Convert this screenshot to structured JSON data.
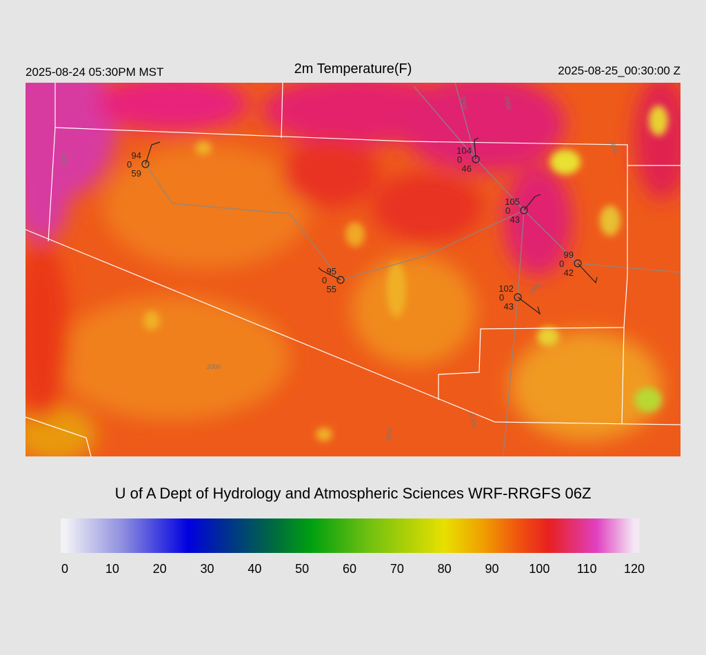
{
  "header": {
    "left": "2025-08-24 05:30PM MST",
    "title": "2m Temperature(F)",
    "right": "2025-08-25_00:30:00 Z"
  },
  "footer": "U of A Dept of Hydrology and Atmospheric Sciences WRF-RRGFS 06Z",
  "colorbar": {
    "lim": [
      0,
      120
    ],
    "ticks": [
      0,
      10,
      20,
      30,
      40,
      50,
      60,
      70,
      80,
      90,
      100,
      110,
      120
    ],
    "stops": [
      {
        "value": 0,
        "color": "#f2f2f6"
      },
      {
        "value": 12,
        "color": "#9090e0"
      },
      {
        "value": 26,
        "color": "#0000e0"
      },
      {
        "value": 34,
        "color": "#003090"
      },
      {
        "value": 44,
        "color": "#006a40"
      },
      {
        "value": 52,
        "color": "#00a010"
      },
      {
        "value": 64,
        "color": "#70c010"
      },
      {
        "value": 80,
        "color": "#e8e000"
      },
      {
        "value": 88,
        "color": "#f0a000"
      },
      {
        "value": 96,
        "color": "#f05010"
      },
      {
        "value": 102,
        "color": "#e82020"
      },
      {
        "value": 112,
        "color": "#e040c0"
      },
      {
        "value": 120,
        "color": "#f4e8f4"
      }
    ]
  },
  "stations": [
    {
      "temp": 94,
      "wind": 0,
      "dewpoint": 59
    },
    {
      "temp": 104,
      "wind": 0,
      "dewpoint": 46
    },
    {
      "temp": 105,
      "wind": 0,
      "dewpoint": 43
    },
    {
      "temp": 95,
      "wind": 0,
      "dewpoint": 55
    },
    {
      "temp": 99,
      "wind": 0,
      "dewpoint": 42
    },
    {
      "temp": 102,
      "wind": 0,
      "dewpoint": 43
    }
  ],
  "contour_labels": [
    "2000",
    "2000",
    "1000",
    "2000",
    "2000",
    "1000",
    "2000",
    "2000"
  ]
}
